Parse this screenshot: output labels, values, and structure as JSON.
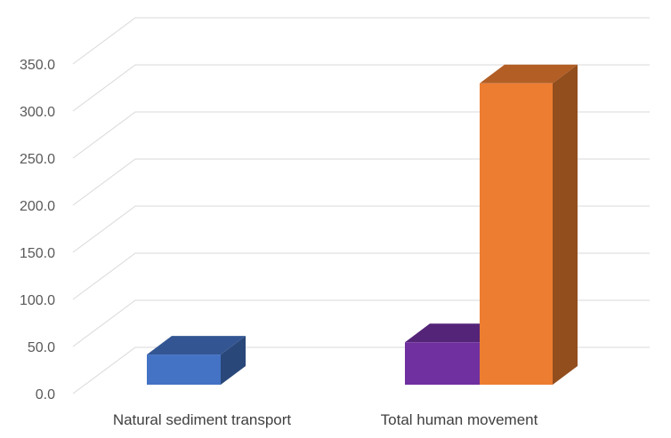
{
  "chart_data": {
    "type": "bar",
    "style": "3d-clustered-column",
    "title": "",
    "xlabel": "",
    "ylabel": "",
    "ylim": [
      0,
      350
    ],
    "y_ticks": [
      "0.0",
      "50.0",
      "100.0",
      "150.0",
      "200.0",
      "250.0",
      "300.0",
      "350.0"
    ],
    "categories": [
      "Natural sediment transport",
      "Total human movement"
    ],
    "bars": [
      {
        "category": "Natural sediment transport",
        "value": 32,
        "color": "#4472c4"
      },
      {
        "category": "Total human movement",
        "value": 45,
        "color": "#7030a0"
      },
      {
        "category": "Total human movement",
        "value": 320,
        "color": "#ed7d31"
      }
    ],
    "grid": true,
    "legend": "none"
  }
}
